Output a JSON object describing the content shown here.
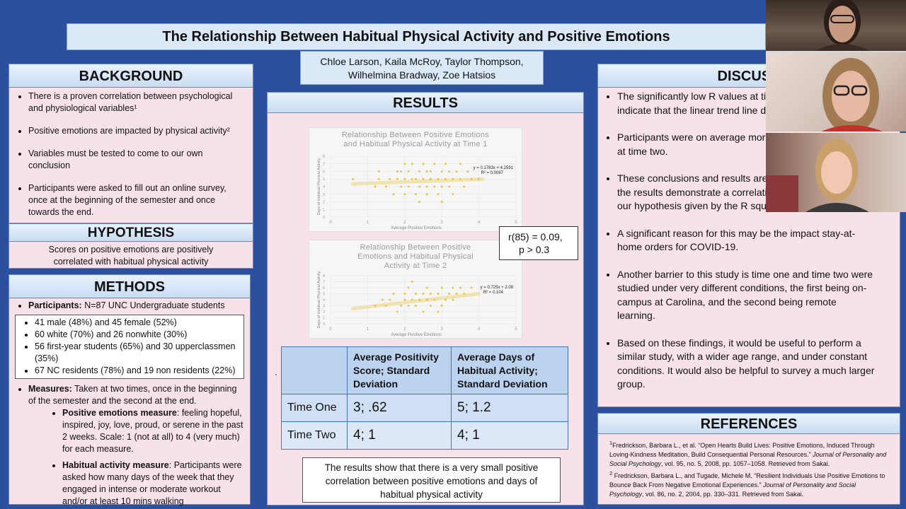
{
  "poster": {
    "title": "The Relationship Between Habitual Physical Activity and Positive Emotions",
    "authors_line1": "Chloe Larson, Kaila McRoy, Taylor Thompson,",
    "authors_line2": "Wilhelmina Bradway, Zoe Hatsios"
  },
  "background": {
    "heading": "BACKGROUND",
    "items": [
      "There is a proven correlation between psychological and physiological variables¹",
      "Positive emotions are impacted by physical activity²",
      "Variables must be tested to come to our own conclusion",
      "Participants were asked to fill out an online survey, once at the beginning of the semester and once towards the end."
    ]
  },
  "hypothesis": {
    "heading": "HYPOTHESIS",
    "text": "Scores on positive emotions are positively correlated with habitual physical activity"
  },
  "methods": {
    "heading": "METHODS",
    "participants_label": "Participants:",
    "participants_text": " N=87 UNC Undergraduate students",
    "demographics": [
      "41 male (48%) and 45 female (52%)",
      "60 white (70%) and 26 nonwhite (30%)",
      "56 first-year students (65%) and 30 upperclassmen (35%)",
      "67 NC residents (78%) and 19 non residents (22%)"
    ],
    "measures_label": "Measures:",
    "measures_text": " Taken at two times, once in the beginning of the semester and the second at the end.",
    "pe_label": "Positive emotions measure",
    "pe_text": ":  feeling hopeful, inspired, joy, love, proud, or serene in the past 2 weeks. Scale: 1 (not at all) to 4 (very much) for each measure.",
    "ha_label": "Habitual activity measure",
    "ha_text": ": Participants were asked how many days of the week that they engaged in intense or moderate workout and/or at least 10 mins walking"
  },
  "results": {
    "heading": "RESULTS",
    "stat_line1": "r(85) = 0.09,",
    "stat_line2": "p > 0.3",
    "tick_mark": "`",
    "table": {
      "col1": "Average Positivity Score; Standard Deviation",
      "col2": "Average Days of Habitual Activity; Standard Deviation",
      "rows": [
        {
          "label": "Time One",
          "v1": "3; .62",
          "v2": "5; 1.2"
        },
        {
          "label": "Time Two",
          "v1": "4; 1",
          "v2": "4; 1"
        }
      ]
    },
    "summary": "The results show that there is a very small positive correlation between positive emotions and days of habitual physical activity"
  },
  "chart_data": [
    {
      "type": "scatter",
      "title_line1": "Relationship Between Positive Emotions",
      "title_line2": "and Habitual Physical Activity at Time 1",
      "title_line3": "",
      "xlabel": "Average Positive Emotions",
      "ylabel": "Days of Habitual Physical Activity",
      "xlim": [
        0,
        5
      ],
      "ylim": [
        0,
        8
      ],
      "x_ticks": [
        "0",
        "1",
        "2",
        "3",
        "4",
        "5"
      ],
      "y_ticks": [
        "0",
        "1",
        "2",
        "3",
        "4",
        "5",
        "6",
        "7",
        "8"
      ],
      "equation": "y = 0.1783x + 4.2591",
      "r2": "R² = 0.0087",
      "trend": {
        "slope": 0.1783,
        "intercept": 4.2591,
        "x_from": 0.6,
        "x_to": 4.1
      },
      "color": "#e8c547",
      "points": [
        [
          0.6,
          5
        ],
        [
          1.2,
          4
        ],
        [
          1.3,
          5
        ],
        [
          1.3,
          6
        ],
        [
          1.5,
          4
        ],
        [
          1.6,
          5
        ],
        [
          1.7,
          3
        ],
        [
          1.8,
          5
        ],
        [
          1.8,
          6
        ],
        [
          1.9,
          4
        ],
        [
          2.0,
          3
        ],
        [
          2.0,
          5
        ],
        [
          2.0,
          7
        ],
        [
          2.1,
          4
        ],
        [
          2.1,
          6
        ],
        [
          2.2,
          5
        ],
        [
          2.3,
          3
        ],
        [
          2.3,
          5
        ],
        [
          2.4,
          4
        ],
        [
          2.4,
          6
        ],
        [
          2.5,
          5
        ],
        [
          2.5,
          7
        ],
        [
          2.6,
          4
        ],
        [
          2.6,
          3
        ],
        [
          2.7,
          5
        ],
        [
          2.7,
          6
        ],
        [
          2.8,
          4
        ],
        [
          2.8,
          7
        ],
        [
          2.9,
          5
        ],
        [
          2.9,
          3
        ],
        [
          3.0,
          6
        ],
        [
          3.0,
          4
        ],
        [
          3.1,
          5
        ],
        [
          3.1,
          7
        ],
        [
          3.2,
          4
        ],
        [
          3.2,
          6
        ],
        [
          3.3,
          5
        ],
        [
          3.3,
          3
        ],
        [
          3.4,
          6
        ],
        [
          3.5,
          5
        ],
        [
          3.5,
          7
        ],
        [
          3.6,
          4
        ],
        [
          3.7,
          6
        ],
        [
          3.8,
          5
        ],
        [
          4.0,
          5
        ],
        [
          2.2,
          7
        ],
        [
          1.9,
          6
        ],
        [
          2.6,
          6
        ],
        [
          3.0,
          2
        ],
        [
          2.4,
          2
        ]
      ]
    },
    {
      "type": "scatter",
      "title_line1": "Relationship Between Positive",
      "title_line2": "Emotions and Habitual Physical",
      "title_line3": "Activity at Time 2",
      "xlabel": "Average Positive Emotions",
      "ylabel": "Days of Habitual Physical Activity",
      "xlim": [
        0,
        5
      ],
      "ylim": [
        0,
        8
      ],
      "x_ticks": [
        "0",
        "1",
        "2",
        "3",
        "4",
        "5"
      ],
      "y_ticks": [
        "0",
        "1",
        "2",
        "3",
        "4",
        "5",
        "6",
        "7",
        "8"
      ],
      "equation": "y = 0.725x + 2.09",
      "r2": "R² = 0.104",
      "trend": {
        "slope": 0.725,
        "intercept": 2.09,
        "x_from": 0.6,
        "x_to": 4.0
      },
      "color": "#e8c547",
      "points": [
        [
          1.2,
          3
        ],
        [
          1.4,
          4
        ],
        [
          1.5,
          3
        ],
        [
          1.6,
          4
        ],
        [
          1.8,
          2
        ],
        [
          1.9,
          3
        ],
        [
          2.0,
          4
        ],
        [
          2.0,
          5
        ],
        [
          2.1,
          3
        ],
        [
          2.1,
          6
        ],
        [
          2.2,
          4
        ],
        [
          2.3,
          3
        ],
        [
          2.3,
          5
        ],
        [
          2.4,
          4
        ],
        [
          2.5,
          2
        ],
        [
          2.5,
          5
        ],
        [
          2.6,
          4
        ],
        [
          2.6,
          6
        ],
        [
          2.7,
          3
        ],
        [
          2.7,
          5
        ],
        [
          2.8,
          4
        ],
        [
          2.9,
          5
        ],
        [
          3.0,
          3
        ],
        [
          3.0,
          6
        ],
        [
          3.1,
          4
        ],
        [
          3.2,
          5
        ],
        [
          3.3,
          4
        ],
        [
          3.3,
          6
        ],
        [
          3.4,
          5
        ],
        [
          3.5,
          6
        ],
        [
          3.6,
          5
        ],
        [
          3.8,
          6
        ],
        [
          2.2,
          7
        ],
        [
          2.9,
          2
        ],
        [
          1.7,
          5
        ]
      ]
    }
  ],
  "discussion": {
    "heading": "DISCUSS",
    "items": [
      "The significantly low R values at time one and time two indicate that the linear trend line does not fit the data.",
      "Participants were on average more active and less happy at time two.",
      "These conclusions and results are not significant because the results demonstrate a correlation that does not match our hypothesis given by the R squared value.",
      "A significant reason for this may be the impact stay-at-home orders for COVID-19.",
      "Another barrier to this study is time one and time two were studied under very different conditions, the first being on-campus at Carolina, and the second being remote learning.",
      "Based on these findings, it would be useful to perform a similar study, with a wider age range, and under constant conditions. It would also be helpful to survey a much larger group."
    ]
  },
  "references": {
    "heading": "REFERENCES",
    "ref1_sup": "1",
    "ref1_a": "Fredrickson, Barbara L., et al. “Open Hearts Build Lives: Positive Emotions, Induced Through Loving-Kindness Meditation, Build Consequential Personal Resources.” ",
    "ref1_journal": "Journal of Personality and Social Psychology",
    "ref1_b": ", vol. 95, no. 5, 2008, pp. 1057–1058. Retrieved from Sakai.",
    "ref2_sup": "2",
    "ref2_a": " Fredrickson, Barbara L., and Tugade, Michele M. “Resilient Individuals Use Positive Emotions to Bounce Back From Negative Emotional Experiences.” ",
    "ref2_journal": "Journal of Personality and Social Psychology",
    "ref2_b": ", vol. 86, no. 2, 2004, pp. 330–331. Retrieved from Sakai."
  },
  "participants_video": [
    {
      "name": "participant-1"
    },
    {
      "name": "participant-2"
    },
    {
      "name": "participant-3"
    }
  ]
}
